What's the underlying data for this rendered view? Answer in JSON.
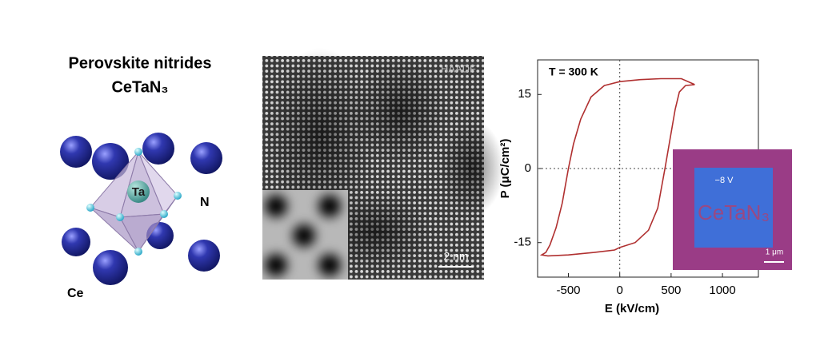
{
  "structure": {
    "title": "Perovskite nitrides",
    "formula": "CeTaN₃",
    "labels": {
      "ta": "Ta",
      "n": "N",
      "ce": "Ce"
    }
  },
  "micrograph": {
    "label": "HAADF",
    "scale_bar": "2 nm"
  },
  "chart_data": {
    "type": "line",
    "x_label": "E (kV/cm)",
    "y_label": "P (μC/cm²)",
    "annotation": "T = 300 K",
    "xlim": [
      -800,
      1350
    ],
    "ylim": [
      -22,
      22
    ],
    "xticks": [
      -500,
      0,
      500,
      1000
    ],
    "yticks": [
      -15,
      0,
      15
    ],
    "series": [
      {
        "color": "#b03030",
        "x": [
          730,
          600,
          400,
          200,
          0,
          -150,
          -280,
          -380,
          -450,
          -500,
          -560,
          -620,
          -680,
          -720,
          -760,
          -700,
          -500,
          -250,
          -50,
          0,
          150,
          280,
          370,
          440,
          490,
          540,
          580,
          640,
          730
        ],
        "values": [
          17,
          18.2,
          18.2,
          18,
          17.6,
          16.8,
          14.5,
          10,
          5,
          0,
          -7,
          -12,
          -15.5,
          -17,
          -17.5,
          -17.7,
          -17.5,
          -17,
          -16.5,
          -16,
          -15,
          -12.5,
          -8,
          0,
          6,
          12,
          15.5,
          16.8,
          17
        ]
      }
    ],
    "inset": {
      "voltage": "−8 V",
      "pattern": "CeTaN₃",
      "scale_bar": "1 μm"
    }
  }
}
